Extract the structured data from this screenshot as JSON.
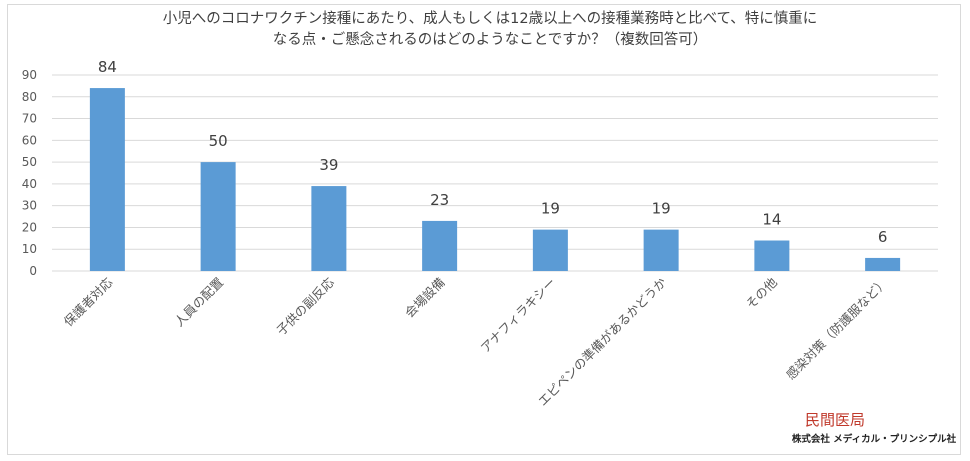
{
  "chart_data": {
    "type": "bar",
    "title_lines": [
      "小児へのコロナワクチン接種にあたり、成人もしくは12歳以上への接種業務時と比べて、特に慎重に",
      "なる点・ご懸念されるのはどのようなことですか？（複数回答可）"
    ],
    "categories": [
      "保護者対応",
      "人員の配置",
      "子供の副反応",
      "会場設備",
      "アナフィラキシー",
      "エピペンの準備があるかどうか",
      "その他",
      "感染対策（防護服など）"
    ],
    "values": [
      84,
      50,
      39,
      23,
      19,
      19,
      14,
      6
    ],
    "ylim": [
      0,
      90
    ],
    "yticks": [
      0,
      10,
      20,
      30,
      40,
      50,
      60,
      70,
      80,
      90
    ],
    "grid": true,
    "bar_color": "#5b9bd5",
    "grid_color": "#d9d9d9",
    "legend": "none"
  },
  "branding": {
    "logo_text": "民間医局",
    "company": "株式会社 メディカル・プリンシプル社"
  }
}
